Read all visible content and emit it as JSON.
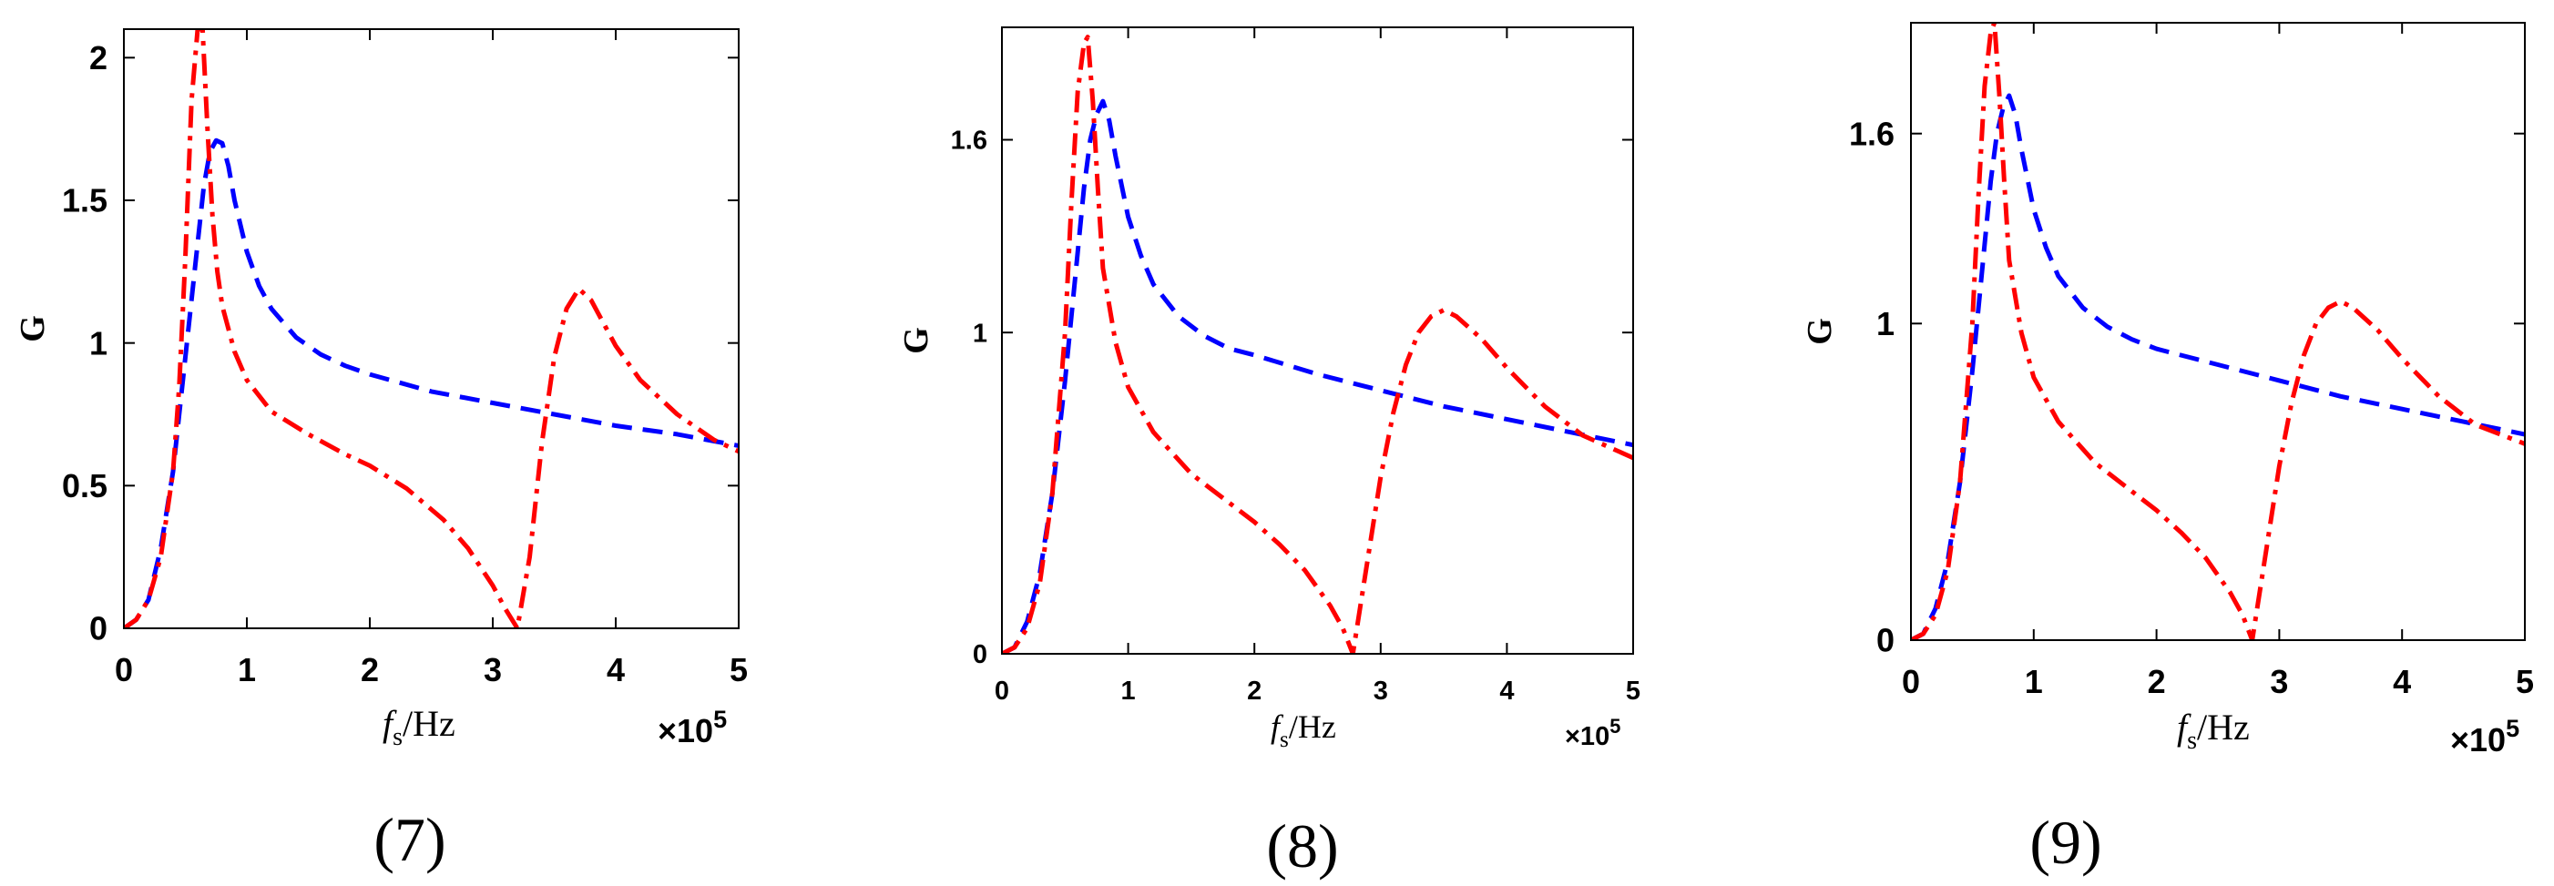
{
  "chart_data": [
    {
      "type": "line",
      "panel_label": "(7)",
      "ylabel": "G",
      "xlabel_main": "f",
      "xlabel_sub": "s",
      "xlabel_unit": "/Hz",
      "x_multiplier_base": "×10",
      "x_multiplier_exp": "5",
      "xlim": [
        0,
        5
      ],
      "ylim": [
        0,
        2.1
      ],
      "xticks": [
        "0",
        "1",
        "2",
        "3",
        "4",
        "5"
      ],
      "yticks": [
        "0",
        "0.5",
        "1",
        "1.5",
        "2"
      ],
      "ytick_values": [
        0,
        0.5,
        1,
        1.5,
        2
      ],
      "series": [
        {
          "color": "#0000ff",
          "dash": "dashed",
          "x": [
            0,
            0.1,
            0.2,
            0.3,
            0.4,
            0.5,
            0.6,
            0.65,
            0.7,
            0.75,
            0.8,
            0.85,
            0.9,
            1.0,
            1.1,
            1.2,
            1.4,
            1.6,
            1.8,
            2.0,
            2.5,
            3.0,
            3.5,
            4.0,
            4.5,
            5.0
          ],
          "y": [
            0,
            0.03,
            0.1,
            0.28,
            0.55,
            0.95,
            1.35,
            1.55,
            1.67,
            1.71,
            1.7,
            1.62,
            1.5,
            1.32,
            1.2,
            1.12,
            1.02,
            0.96,
            0.92,
            0.89,
            0.83,
            0.79,
            0.75,
            0.71,
            0.68,
            0.64
          ]
        },
        {
          "color": "#ff0000",
          "dash": "dashdot",
          "x": [
            0,
            0.1,
            0.2,
            0.3,
            0.4,
            0.45,
            0.5,
            0.55,
            0.6,
            0.64,
            0.68,
            0.72,
            0.76,
            0.8,
            0.9,
            1.0,
            1.2,
            1.5,
            1.8,
            2.0,
            2.3,
            2.6,
            2.8,
            3.0,
            3.1,
            3.2,
            3.3,
            3.4,
            3.5,
            3.6,
            3.7,
            3.8,
            4.0,
            4.2,
            4.5,
            4.8,
            5.0
          ],
          "y": [
            0,
            0.03,
            0.1,
            0.25,
            0.55,
            0.85,
            1.3,
            1.85,
            2.1,
            2.1,
            1.75,
            1.45,
            1.25,
            1.13,
            0.97,
            0.87,
            0.76,
            0.68,
            0.61,
            0.57,
            0.49,
            0.38,
            0.28,
            0.15,
            0.07,
            0.0,
            0.25,
            0.65,
            0.95,
            1.12,
            1.19,
            1.15,
            0.99,
            0.87,
            0.75,
            0.66,
            0.62
          ]
        }
      ]
    },
    {
      "type": "line",
      "panel_label": "(8)",
      "ylabel": "G",
      "xlabel_main": "f",
      "xlabel_sub": "s",
      "xlabel_unit": "/Hz",
      "x_multiplier_base": "×10",
      "x_multiplier_exp": "5",
      "xlim": [
        0,
        5
      ],
      "ylim": [
        0,
        1.95
      ],
      "xticks": [
        "0",
        "1",
        "2",
        "3",
        "4",
        "5"
      ],
      "yticks": [
        "0",
        "1",
        "1.6"
      ],
      "ytick_values": [
        0,
        1,
        1.6
      ],
      "series": [
        {
          "color": "#0000ff",
          "dash": "dashed",
          "x": [
            0,
            0.1,
            0.2,
            0.3,
            0.4,
            0.5,
            0.6,
            0.65,
            0.7,
            0.75,
            0.8,
            0.85,
            0.9,
            1.0,
            1.1,
            1.2,
            1.4,
            1.6,
            1.8,
            2.0,
            2.5,
            3.0,
            3.5,
            4.0,
            4.5,
            5.0
          ],
          "y": [
            0,
            0.02,
            0.1,
            0.25,
            0.5,
            0.85,
            1.25,
            1.45,
            1.6,
            1.68,
            1.72,
            1.66,
            1.55,
            1.36,
            1.24,
            1.15,
            1.05,
            0.99,
            0.95,
            0.93,
            0.87,
            0.82,
            0.77,
            0.73,
            0.69,
            0.65
          ]
        },
        {
          "color": "#ff0000",
          "dash": "dashdot",
          "x": [
            0,
            0.1,
            0.2,
            0.3,
            0.4,
            0.5,
            0.55,
            0.6,
            0.65,
            0.68,
            0.72,
            0.76,
            0.8,
            0.9,
            1.0,
            1.2,
            1.5,
            1.8,
            2.0,
            2.2,
            2.4,
            2.6,
            2.7,
            2.78,
            2.9,
            3.0,
            3.1,
            3.2,
            3.3,
            3.4,
            3.5,
            3.6,
            3.8,
            4.0,
            4.3,
            4.6,
            5.0
          ],
          "y": [
            0,
            0.02,
            0.08,
            0.22,
            0.5,
            1.0,
            1.4,
            1.75,
            1.9,
            1.92,
            1.72,
            1.45,
            1.2,
            0.97,
            0.83,
            0.69,
            0.56,
            0.47,
            0.41,
            0.34,
            0.26,
            0.15,
            0.08,
            0.0,
            0.3,
            0.55,
            0.75,
            0.9,
            1.0,
            1.05,
            1.07,
            1.05,
            0.98,
            0.89,
            0.77,
            0.68,
            0.61
          ]
        }
      ]
    },
    {
      "type": "line",
      "panel_label": "(9)",
      "ylabel": "G",
      "xlabel_main": "f",
      "xlabel_sub": "s",
      "xlabel_unit": "/Hz",
      "x_multiplier_base": "×10",
      "x_multiplier_exp": "5",
      "xlim": [
        0,
        5
      ],
      "ylim": [
        0,
        1.95
      ],
      "xticks": [
        "0",
        "1",
        "2",
        "3",
        "4",
        "5"
      ],
      "yticks": [
        "0",
        "1",
        "1.6"
      ],
      "ytick_values": [
        0,
        1,
        1.6
      ],
      "series": [
        {
          "color": "#0000ff",
          "dash": "dashed",
          "x": [
            0,
            0.1,
            0.2,
            0.3,
            0.4,
            0.5,
            0.6,
            0.65,
            0.7,
            0.75,
            0.8,
            0.85,
            0.9,
            1.0,
            1.1,
            1.2,
            1.4,
            1.6,
            1.8,
            2.0,
            2.5,
            3.0,
            3.5,
            4.0,
            4.5,
            5.0
          ],
          "y": [
            0,
            0.02,
            0.1,
            0.25,
            0.5,
            0.85,
            1.25,
            1.45,
            1.6,
            1.68,
            1.72,
            1.66,
            1.55,
            1.36,
            1.24,
            1.15,
            1.05,
            0.99,
            0.95,
            0.92,
            0.87,
            0.82,
            0.77,
            0.73,
            0.69,
            0.65
          ]
        },
        {
          "color": "#ff0000",
          "dash": "dashdot",
          "x": [
            0,
            0.1,
            0.2,
            0.3,
            0.4,
            0.5,
            0.55,
            0.6,
            0.65,
            0.68,
            0.72,
            0.76,
            0.8,
            0.9,
            1.0,
            1.2,
            1.5,
            1.8,
            2.0,
            2.2,
            2.4,
            2.6,
            2.7,
            2.78,
            2.9,
            3.0,
            3.1,
            3.2,
            3.3,
            3.4,
            3.5,
            3.6,
            3.8,
            4.0,
            4.3,
            4.6,
            5.0
          ],
          "y": [
            0,
            0.02,
            0.08,
            0.22,
            0.5,
            1.0,
            1.4,
            1.75,
            1.92,
            1.95,
            1.72,
            1.45,
            1.2,
            0.97,
            0.83,
            0.69,
            0.56,
            0.47,
            0.41,
            0.34,
            0.26,
            0.15,
            0.08,
            0.0,
            0.3,
            0.55,
            0.75,
            0.9,
            1.0,
            1.05,
            1.07,
            1.05,
            0.98,
            0.89,
            0.77,
            0.68,
            0.62
          ]
        }
      ]
    }
  ]
}
